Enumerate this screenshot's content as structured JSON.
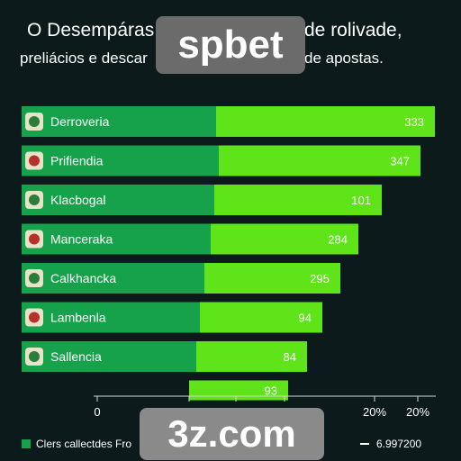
{
  "header": {
    "line1_left": "O  Desempáras",
    "line1_right": "de rolivade,",
    "line2_left": "preliácios e descar",
    "line2_right": "de apostas."
  },
  "watermark": {
    "brand": "spbet",
    "domain": "3z.com"
  },
  "legend": {
    "left_label": "Clers callectdes Fro",
    "right_label": "6.997200"
  },
  "colors": {
    "bar_dark": "#16a24a",
    "bar_light": "#5fe41a",
    "background": "#0d1a1b"
  },
  "chart_data": {
    "type": "bar",
    "orientation": "horizontal",
    "categories": [
      "Derroveria",
      "Prifiendia",
      "Klacbogal",
      "Manceraka",
      "Calkhancka",
      "Lambenla",
      "Sallencia",
      ""
    ],
    "values": [
      333,
      347,
      101,
      284,
      295,
      94,
      84,
      93
    ],
    "value_labels": [
      "333",
      "347",
      "101",
      "284",
      "295",
      "94",
      "84",
      "93"
    ],
    "dark_segment": [
      240,
      243,
      238,
      234,
      227,
      222,
      218,
      210
    ],
    "total_end": [
      483,
      467,
      424,
      398,
      378,
      358,
      341,
      320
    ],
    "x_ticks": [
      "0",
      "20%",
      "20%",
      "20%",
      "20%",
      "20%"
    ],
    "icons": [
      "club-crest-icon",
      "club-crest-icon",
      "club-crest-icon",
      "club-crest-icon",
      "club-crest-icon",
      "club-crest-icon",
      "club-crest-icon",
      ""
    ]
  }
}
